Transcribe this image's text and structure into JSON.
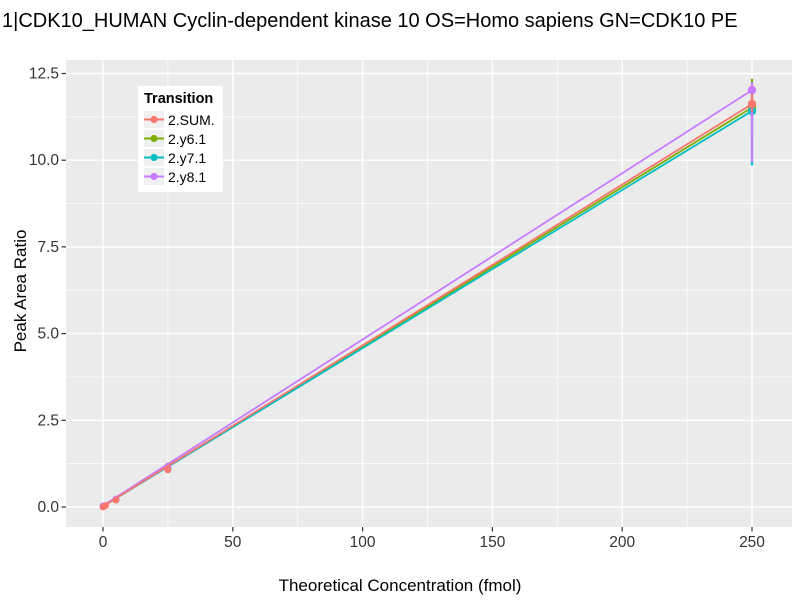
{
  "chart_title": "1|CDK10_HUMAN Cyclin-dependent kinase 10 OS=Homo sapiens GN=CDK10 PE",
  "chart_data": {
    "type": "line",
    "title": "1|CDK10_HUMAN Cyclin-dependent kinase 10 OS=Homo sapiens GN=CDK10 PE",
    "xlabel": "Theoretical Concentration (fmol)",
    "ylabel": "Peak Area Ratio",
    "xlim": [
      -14,
      265
    ],
    "ylim": [
      -0.58,
      13.05
    ],
    "x_ticks": [
      0,
      50,
      100,
      150,
      200,
      250
    ],
    "x_tick_labels": [
      "0",
      "50",
      "100",
      "150",
      "200",
      "250"
    ],
    "y_ticks": [
      0,
      2.5,
      5,
      7.5,
      10,
      12.5
    ],
    "y_tick_labels": [
      "0.0",
      "2.5",
      "5.0",
      "7.5",
      "10.0",
      "12.5"
    ],
    "x_minor_ticks": [
      25,
      75,
      125,
      175,
      225
    ],
    "y_minor_ticks": [
      1.25,
      3.75,
      6.25,
      8.75,
      11.25
    ],
    "grid": "major and minor white gridlines on gray panel",
    "legend_position": "inside top-left",
    "legend_title": "Transition",
    "panel_bg": "#EBEBEB",
    "grid_color": "#FFFFFF",
    "axis_text_color": "#333333",
    "draw_order": [
      1,
      2,
      3,
      0
    ],
    "series": [
      {
        "name": "2.SUM.",
        "color": "#F8766D",
        "line": [
          [
            0,
            0.02
          ],
          [
            250,
            11.62
          ]
        ],
        "points": [
          [
            0,
            0.0
          ],
          [
            1,
            0.04
          ],
          [
            5,
            0.2
          ],
          [
            25,
            1.07
          ],
          [
            250,
            11.62
          ]
        ],
        "errorbar": {
          "x": 250,
          "low": 11.4,
          "high": 11.9
        }
      },
      {
        "name": "2.y6.1",
        "color": "#7CAE00",
        "line": [
          [
            0,
            0.03
          ],
          [
            250,
            11.52
          ]
        ],
        "points": [
          [
            0,
            0.02
          ],
          [
            5,
            0.22
          ],
          [
            25,
            1.15
          ],
          [
            250,
            11.52
          ]
        ],
        "errorbar": {
          "x": 250,
          "low": 10.8,
          "high": 12.35
        }
      },
      {
        "name": "2.y7.1",
        "color": "#00BFC4",
        "line": [
          [
            0,
            0.02
          ],
          [
            250,
            11.42
          ]
        ],
        "points": [
          [
            0,
            0.02
          ],
          [
            5,
            0.21
          ],
          [
            25,
            1.12
          ],
          [
            250,
            11.42
          ]
        ],
        "errorbar": {
          "x": 250,
          "low": 9.85,
          "high": 11.95
        }
      },
      {
        "name": "2.y8.1",
        "color": "#C77CFF",
        "line": [
          [
            0,
            0.04
          ],
          [
            250,
            12.02
          ]
        ],
        "points": [
          [
            0,
            0.03
          ],
          [
            5,
            0.23
          ],
          [
            25,
            1.18
          ],
          [
            250,
            12.02
          ]
        ],
        "errorbar": {
          "x": 250,
          "low": 9.95,
          "high": 12.25
        }
      }
    ]
  }
}
